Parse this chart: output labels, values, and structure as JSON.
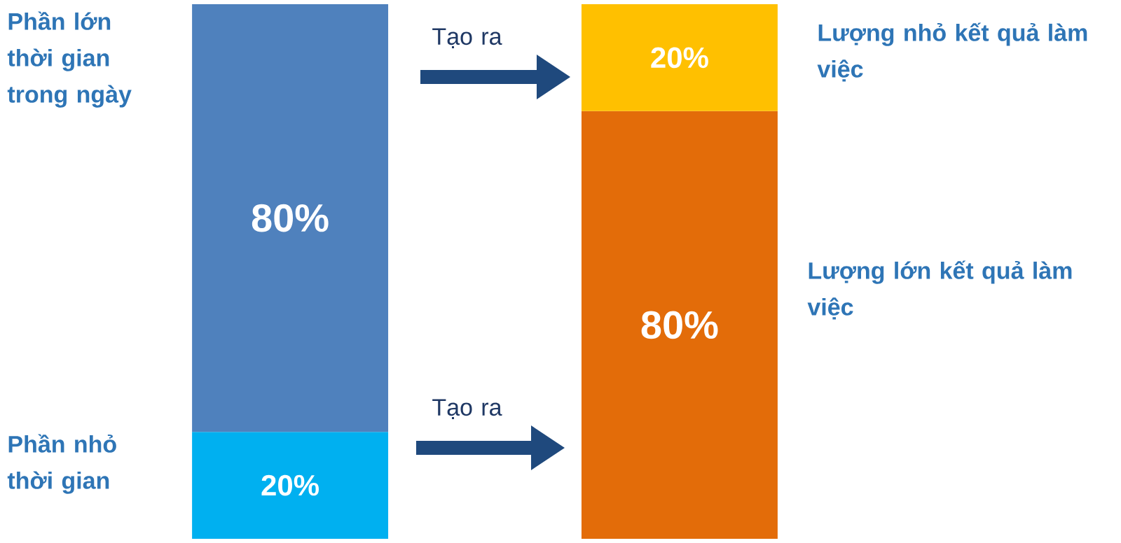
{
  "chart_data": {
    "type": "bar",
    "stacked": true,
    "categories": [
      null,
      null
    ],
    "ylim": [
      0,
      100
    ],
    "series": [
      {
        "values": [
          20,
          80
        ],
        "colors": [
          "#00b0f0",
          "#e36c09"
        ],
        "value_labels": [
          "20%",
          "80%"
        ]
      },
      {
        "values": [
          80,
          20
        ],
        "colors": [
          "#4f81bd",
          "#ffc000"
        ],
        "value_labels": [
          "80%",
          "20%"
        ]
      }
    ],
    "annotations": [
      "Phần lớn thời gian trong ngày",
      "Phần nhỏ thời gian",
      "Lượng nhỏ kết quả làm việc",
      "Lượng lớn kết quả làm việc",
      "Tạo ra",
      "Tạo ra"
    ]
  }
}
